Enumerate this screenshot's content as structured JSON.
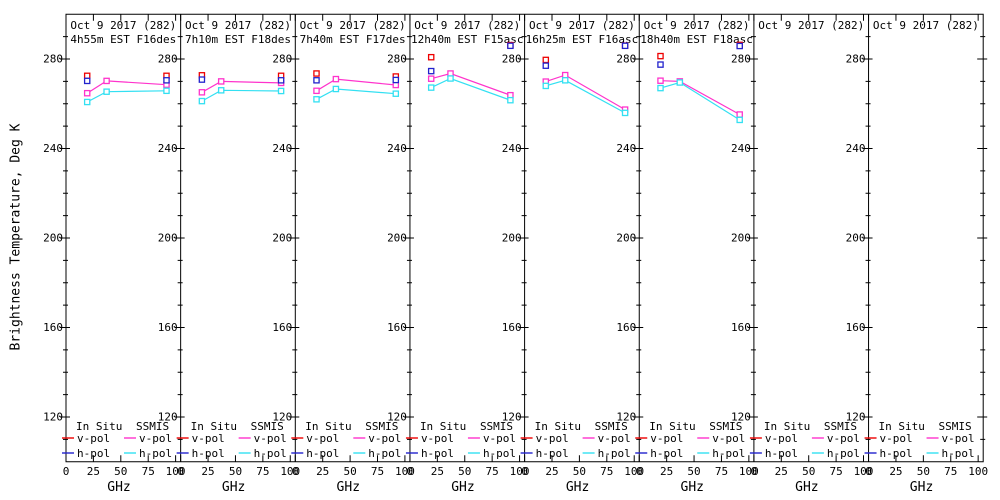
{
  "figure": {
    "y_axis_title": "Brightness Temperature, Deg K",
    "x_axis_title": "GHz",
    "y_ticks": [
      280,
      240,
      200,
      160,
      120
    ],
    "x_ticks": [
      0,
      25,
      50,
      75,
      100
    ],
    "axes": {
      "x_range_ghz": [
        0,
        104.6
      ],
      "y_range_degk": [
        100,
        300
      ],
      "y_minor_step": 10,
      "grid": false
    },
    "legend": {
      "col1_header": "In Situ",
      "col2_header": "SSMIS",
      "vpol_label": "v-pol",
      "hpol_label": "h-pol",
      "position": "bottom-inside-each-panel"
    },
    "colors": {
      "insitu_v": "#ee0000",
      "insitu_h": "#2222cc",
      "ssmis_v": "#ff33cc",
      "ssmis_h": "#33e0f2",
      "frame": "#000000",
      "background": "#ffffff"
    }
  },
  "chart_data": [
    {
      "type": "line",
      "title": "Oct 9 2017 (282)",
      "subtitle": "4h55m EST F16des",
      "series": [
        {
          "name": "SSMIS v-pol",
          "color": "ssmis_v",
          "line": true,
          "marker": "square",
          "x": [
            19.35,
            37.0,
            91.655
          ],
          "y": [
            264.7,
            270.2,
            268.5
          ]
        },
        {
          "name": "SSMIS h-pol",
          "color": "ssmis_h",
          "line": true,
          "marker": "square",
          "x": [
            19.35,
            37.0,
            91.655
          ],
          "y": [
            260.8,
            265.4,
            265.8
          ]
        },
        {
          "name": "In Situ v-pol",
          "color": "insitu_v",
          "line": false,
          "marker": "square",
          "x": [
            19.35,
            91.655
          ],
          "y": [
            272.5,
            272.5
          ]
        },
        {
          "name": "In Situ h-pol",
          "color": "insitu_h",
          "line": false,
          "marker": "square",
          "x": [
            19.35,
            91.655
          ],
          "y": [
            270.2,
            270.5
          ]
        }
      ]
    },
    {
      "type": "line",
      "title": "Oct 9 2017 (282)",
      "subtitle": "7h10m EST F18des",
      "series": [
        {
          "name": "SSMIS v-pol",
          "color": "ssmis_v",
          "line": true,
          "marker": "square",
          "x": [
            19.35,
            37.0,
            91.655
          ],
          "y": [
            265.1,
            270.0,
            269.3
          ]
        },
        {
          "name": "SSMIS h-pol",
          "color": "ssmis_h",
          "line": true,
          "marker": "square",
          "x": [
            19.35,
            37.0,
            91.655
          ],
          "y": [
            261.2,
            266.0,
            265.7
          ]
        },
        {
          "name": "In Situ v-pol",
          "color": "insitu_v",
          "line": false,
          "marker": "square",
          "x": [
            19.35,
            91.655
          ],
          "y": [
            272.7,
            272.5
          ]
        },
        {
          "name": "In Situ h-pol",
          "color": "insitu_h",
          "line": false,
          "marker": "square",
          "x": [
            19.35,
            91.655
          ],
          "y": [
            270.8,
            270.5
          ]
        }
      ]
    },
    {
      "type": "line",
      "title": "Oct 9 2017 (282)",
      "subtitle": "7h40m EST F17des",
      "series": [
        {
          "name": "SSMIS v-pol",
          "color": "ssmis_v",
          "line": true,
          "marker": "square",
          "x": [
            19.35,
            37.0,
            91.655
          ],
          "y": [
            265.8,
            271.0,
            268.4
          ]
        },
        {
          "name": "SSMIS h-pol",
          "color": "ssmis_h",
          "line": true,
          "marker": "square",
          "x": [
            19.35,
            37.0,
            91.655
          ],
          "y": [
            262.0,
            266.6,
            264.5
          ]
        },
        {
          "name": "In Situ v-pol",
          "color": "insitu_v",
          "line": false,
          "marker": "square",
          "x": [
            19.35,
            91.655
          ],
          "y": [
            273.5,
            272.2
          ]
        },
        {
          "name": "In Situ h-pol",
          "color": "insitu_h",
          "line": false,
          "marker": "square",
          "x": [
            19.35,
            91.655
          ],
          "y": [
            270.5,
            270.6
          ]
        }
      ]
    },
    {
      "type": "line",
      "title": "Oct 9 2017 (282)",
      "subtitle": "12h40m EST F15asc",
      "series": [
        {
          "name": "SSMIS v-pol",
          "color": "ssmis_v",
          "line": true,
          "marker": "square",
          "x": [
            19.35,
            37.0,
            91.655
          ],
          "y": [
            271.2,
            273.5,
            263.8
          ]
        },
        {
          "name": "SSMIS h-pol",
          "color": "ssmis_h",
          "line": true,
          "marker": "square",
          "x": [
            19.35,
            37.0,
            91.655
          ],
          "y": [
            267.2,
            271.3,
            261.6
          ]
        },
        {
          "name": "In Situ v-pol",
          "color": "insitu_v",
          "line": false,
          "marker": "square",
          "x": [
            19.35,
            91.655
          ],
          "y": [
            280.8,
            286.2
          ]
        },
        {
          "name": "In Situ h-pol",
          "color": "insitu_h",
          "line": false,
          "marker": "square",
          "x": [
            19.35,
            91.655
          ],
          "y": [
            274.6,
            285.9
          ]
        }
      ]
    },
    {
      "type": "line",
      "title": "Oct 9 2017 (282)",
      "subtitle": "16h25m EST F16asc",
      "series": [
        {
          "name": "SSMIS v-pol",
          "color": "ssmis_v",
          "line": true,
          "marker": "square",
          "x": [
            19.35,
            37.0,
            91.655
          ],
          "y": [
            269.9,
            272.8,
            257.4
          ]
        },
        {
          "name": "SSMIS h-pol",
          "color": "ssmis_h",
          "line": true,
          "marker": "square",
          "x": [
            19.35,
            37.0,
            91.655
          ],
          "y": [
            268.0,
            270.5,
            255.9
          ]
        },
        {
          "name": "In Situ v-pol",
          "color": "insitu_v",
          "line": false,
          "marker": "square",
          "x": [
            19.35,
            91.655
          ],
          "y": [
            279.6,
            286.0
          ]
        },
        {
          "name": "In Situ h-pol",
          "color": "insitu_h",
          "line": false,
          "marker": "square",
          "x": [
            19.35,
            91.655
          ],
          "y": [
            277.0,
            285.9
          ]
        }
      ]
    },
    {
      "type": "line",
      "title": "Oct 9 2017 (282)",
      "subtitle": "18h40m EST F18asc",
      "series": [
        {
          "name": "SSMIS v-pol",
          "color": "ssmis_v",
          "line": true,
          "marker": "square",
          "x": [
            19.35,
            37.0,
            91.655
          ],
          "y": [
            270.3,
            270.0,
            255.2
          ]
        },
        {
          "name": "SSMIS h-pol",
          "color": "ssmis_h",
          "line": true,
          "marker": "square",
          "x": [
            19.35,
            37.0,
            91.655
          ],
          "y": [
            267.0,
            269.5,
            252.8
          ]
        },
        {
          "name": "In Situ v-pol",
          "color": "insitu_v",
          "line": false,
          "marker": "square",
          "x": [
            19.35,
            91.655
          ],
          "y": [
            281.3,
            286.3
          ]
        },
        {
          "name": "In Situ h-pol",
          "color": "insitu_h",
          "line": false,
          "marker": "square",
          "x": [
            19.35,
            91.655
          ],
          "y": [
            277.5,
            285.8
          ]
        }
      ]
    },
    {
      "type": "line",
      "title": "Oct 9 2017 (282)",
      "subtitle": "",
      "series": []
    },
    {
      "type": "line",
      "title": "Oct 9 2017 (282)",
      "subtitle": "",
      "series": []
    }
  ]
}
